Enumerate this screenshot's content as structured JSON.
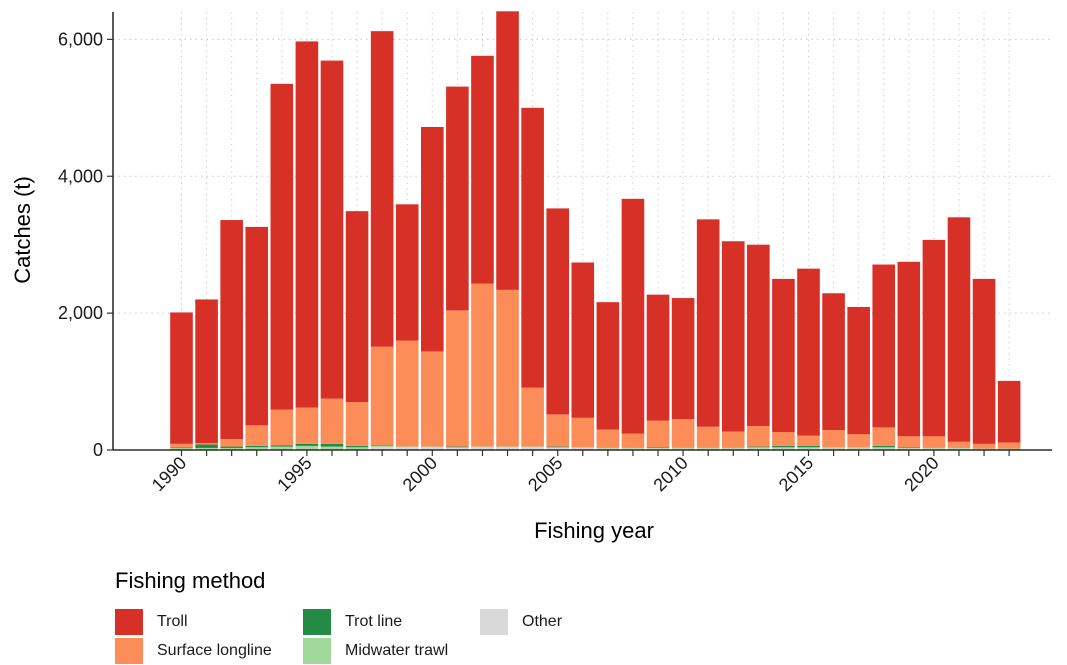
{
  "chart_data": {
    "type": "bar",
    "stacked": true,
    "xlabel": "Fishing year",
    "ylabel": "Catches (t)",
    "ylim": [
      0,
      6400
    ],
    "y_ticks": [
      "0",
      "2,000",
      "4,000",
      "6,000"
    ],
    "y_tick_values": [
      0,
      2000,
      4000,
      6000
    ],
    "x_ticks": [
      "1990",
      "1995",
      "2000",
      "2005",
      "2010",
      "2015",
      "2020"
    ],
    "x_tick_values": [
      1990,
      1995,
      2000,
      2005,
      2010,
      2015,
      2020
    ],
    "grid": true,
    "legend_position": "bottom-left",
    "legend_title": "Fishing method",
    "categories": [
      1990,
      1991,
      1992,
      1993,
      1994,
      1995,
      1996,
      1997,
      1998,
      1999,
      2000,
      2001,
      2002,
      2003,
      2004,
      2005,
      2006,
      2007,
      2008,
      2009,
      2010,
      2011,
      2012,
      2013,
      2014,
      2015,
      2016,
      2017,
      2018,
      2019,
      2020,
      2021,
      2022,
      2023
    ],
    "series": [
      {
        "name": "Other",
        "color": "#d9d9d9",
        "values": [
          10,
          10,
          10,
          10,
          10,
          10,
          10,
          10,
          40,
          40,
          40,
          30,
          40,
          40,
          40,
          30,
          30,
          20,
          20,
          20,
          20,
          20,
          20,
          20,
          20,
          20,
          20,
          20,
          20,
          20,
          20,
          20,
          10,
          10
        ]
      },
      {
        "name": "Midwater trawl",
        "color": "#a1d99b",
        "values": [
          20,
          20,
          20,
          30,
          40,
          50,
          40,
          30,
          20,
          10,
          10,
          10,
          10,
          10,
          10,
          10,
          10,
          10,
          10,
          10,
          10,
          10,
          10,
          20,
          20,
          20,
          20,
          20,
          20,
          10,
          10,
          10,
          10,
          10
        ]
      },
      {
        "name": "Trot line",
        "color": "#238b45",
        "values": [
          10,
          50,
          20,
          20,
          20,
          30,
          40,
          20,
          10,
          0,
          0,
          10,
          0,
          0,
          0,
          10,
          0,
          0,
          0,
          10,
          0,
          0,
          0,
          10,
          20,
          20,
          0,
          0,
          20,
          10,
          0,
          0,
          0,
          0
        ]
      },
      {
        "name": "Surface longline",
        "color": "#fc8d59",
        "values": [
          50,
          20,
          110,
          300,
          520,
          530,
          660,
          640,
          1440,
          1550,
          1390,
          1990,
          2380,
          2290,
          860,
          470,
          430,
          270,
          210,
          390,
          420,
          310,
          240,
          300,
          200,
          150,
          250,
          190,
          270,
          160,
          170,
          90,
          70,
          90
        ]
      },
      {
        "name": "Troll",
        "color": "#d73027",
        "values": [
          1920,
          2100,
          3200,
          2900,
          4760,
          5350,
          4940,
          2790,
          4610,
          1990,
          3280,
          3270,
          3330,
          4070,
          4090,
          3010,
          2270,
          1860,
          3430,
          1840,
          1770,
          3030,
          2780,
          2650,
          2240,
          2440,
          2000,
          1860,
          2380,
          2550,
          2870,
          3280,
          2410,
          900
        ]
      }
    ]
  },
  "legend": {
    "title": "Fishing method",
    "items": [
      {
        "label": "Troll",
        "color": "#d73027"
      },
      {
        "label": "Surface longline",
        "color": "#fc8d59"
      },
      {
        "label": "Trot line",
        "color": "#238b45"
      },
      {
        "label": "Midwater trawl",
        "color": "#a1d99b"
      },
      {
        "label": "Other",
        "color": "#d9d9d9"
      }
    ]
  }
}
